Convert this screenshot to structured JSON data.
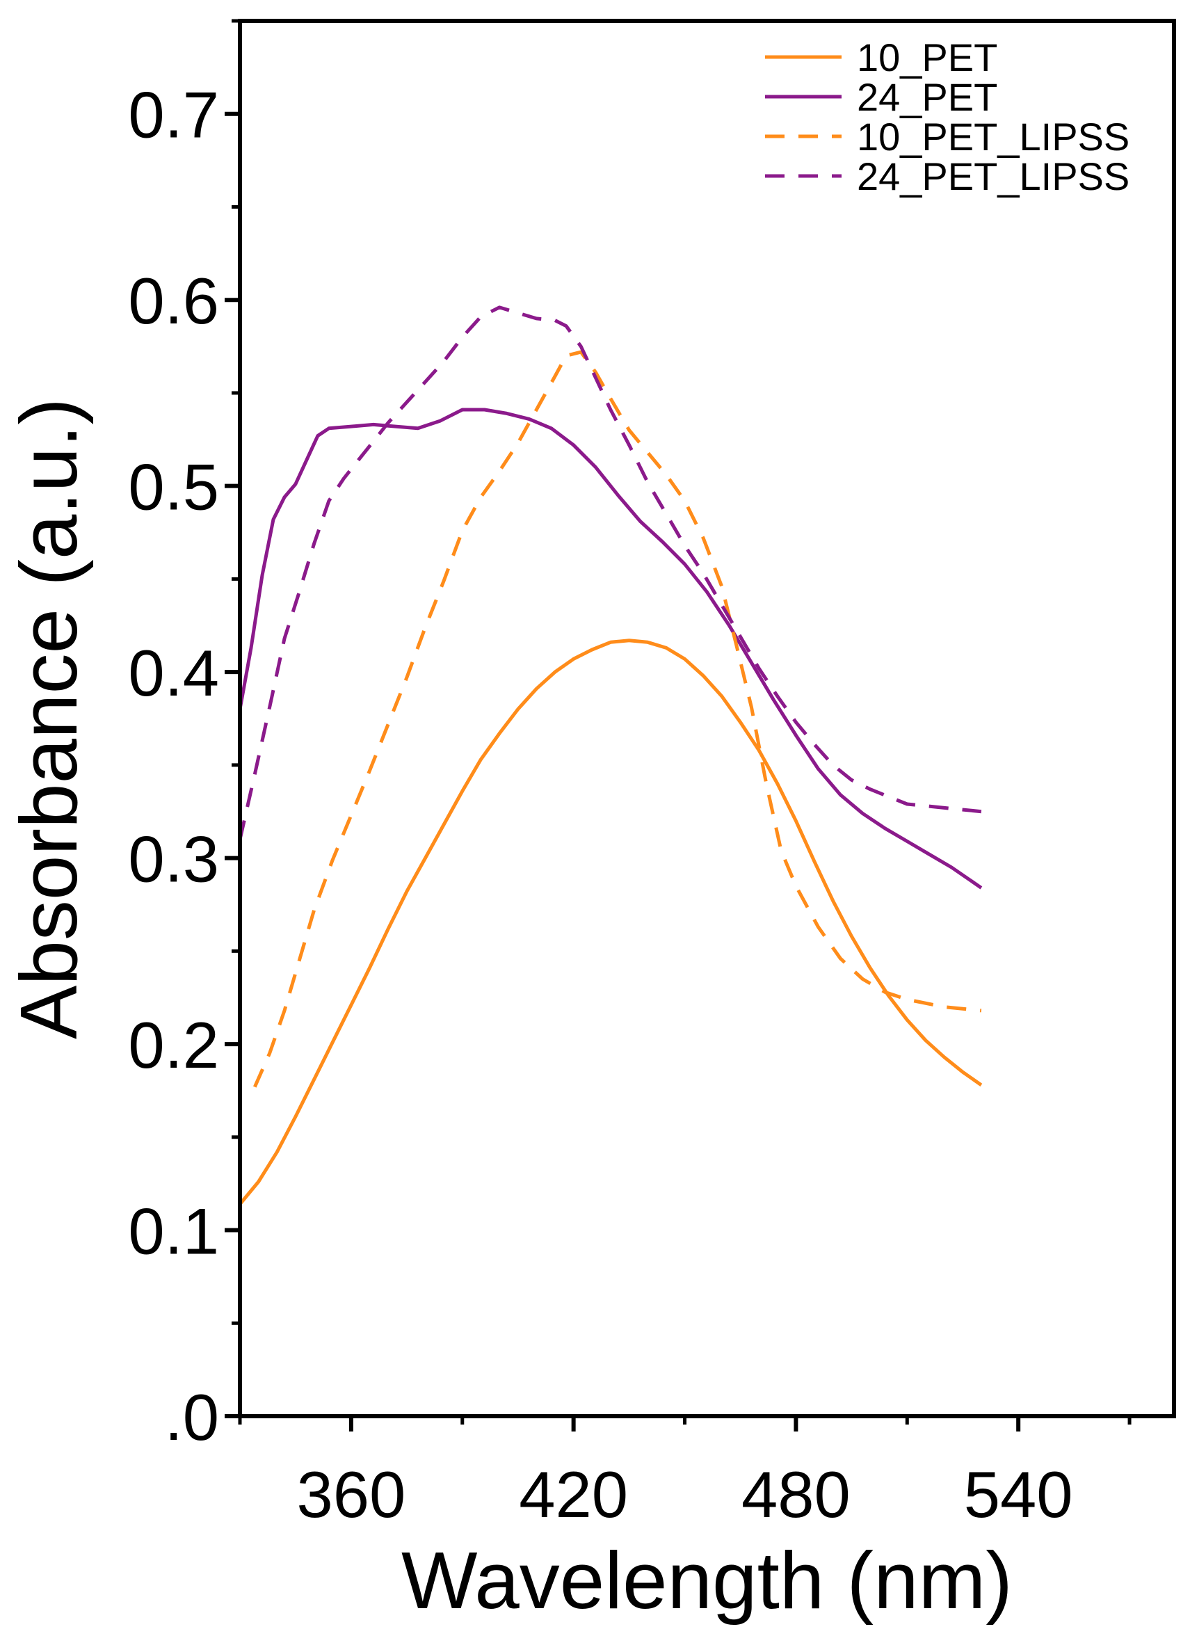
{
  "chart_data": {
    "type": "line",
    "title": "",
    "xlabel": "Wavelength (nm)",
    "ylabel": "Absorbance (a.u.)",
    "xlim": [
      330,
      582
    ],
    "ylim": [
      0.0,
      0.75
    ],
    "x_ticks": [
      360,
      420,
      480,
      540
    ],
    "x_tick_labels": [
      "360",
      "420",
      "480",
      "540"
    ],
    "x_minor_ticks": [
      330,
      390,
      450,
      510,
      570
    ],
    "y_ticks": [
      0.0,
      0.1,
      0.2,
      0.3,
      0.4,
      0.5,
      0.6,
      0.7
    ],
    "y_tick_labels": [
      ".0",
      "0.1",
      "0.2",
      "0.3",
      "0.4",
      "0.5",
      "0.6",
      "0.7"
    ],
    "y_minor_ticks": [
      0.05,
      0.15,
      0.25,
      0.35,
      0.45,
      0.55,
      0.65,
      0.75
    ],
    "grid": false,
    "legend_position": "top-right",
    "series": [
      {
        "name": "10_PET",
        "color": "#ff8c1a",
        "dash": "solid",
        "points": [
          [
            330,
            0.114
          ],
          [
            335,
            0.126
          ],
          [
            340,
            0.142
          ],
          [
            345,
            0.161
          ],
          [
            350,
            0.181
          ],
          [
            355,
            0.201
          ],
          [
            360,
            0.221
          ],
          [
            365,
            0.241
          ],
          [
            370,
            0.262
          ],
          [
            375,
            0.282
          ],
          [
            380,
            0.3
          ],
          [
            385,
            0.318
          ],
          [
            390,
            0.336
          ],
          [
            395,
            0.353
          ],
          [
            400,
            0.367
          ],
          [
            405,
            0.38
          ],
          [
            410,
            0.391
          ],
          [
            415,
            0.4
          ],
          [
            420,
            0.407
          ],
          [
            425,
            0.412
          ],
          [
            430,
            0.416
          ],
          [
            435,
            0.417
          ],
          [
            440,
            0.416
          ],
          [
            445,
            0.413
          ],
          [
            450,
            0.407
          ],
          [
            455,
            0.398
          ],
          [
            460,
            0.387
          ],
          [
            465,
            0.373
          ],
          [
            470,
            0.358
          ],
          [
            475,
            0.34
          ],
          [
            480,
            0.32
          ],
          [
            485,
            0.298
          ],
          [
            490,
            0.277
          ],
          [
            495,
            0.258
          ],
          [
            500,
            0.241
          ],
          [
            505,
            0.226
          ],
          [
            510,
            0.213
          ],
          [
            515,
            0.202
          ],
          [
            520,
            0.193
          ],
          [
            525,
            0.185
          ],
          [
            530,
            0.178
          ]
        ]
      },
      {
        "name": "24_PET",
        "color": "#8b1a8b",
        "dash": "solid",
        "points": [
          [
            330,
            0.38
          ],
          [
            333,
            0.413
          ],
          [
            336,
            0.452
          ],
          [
            339,
            0.482
          ],
          [
            342,
            0.494
          ],
          [
            345,
            0.501
          ],
          [
            348,
            0.514
          ],
          [
            351,
            0.527
          ],
          [
            354,
            0.531
          ],
          [
            360,
            0.532
          ],
          [
            366,
            0.533
          ],
          [
            372,
            0.532
          ],
          [
            378,
            0.531
          ],
          [
            384,
            0.535
          ],
          [
            390,
            0.541
          ],
          [
            396,
            0.541
          ],
          [
            402,
            0.539
          ],
          [
            408,
            0.536
          ],
          [
            414,
            0.531
          ],
          [
            420,
            0.522
          ],
          [
            426,
            0.51
          ],
          [
            432,
            0.495
          ],
          [
            438,
            0.481
          ],
          [
            444,
            0.47
          ],
          [
            450,
            0.458
          ],
          [
            456,
            0.443
          ],
          [
            462,
            0.425
          ],
          [
            468,
            0.405
          ],
          [
            474,
            0.385
          ],
          [
            480,
            0.366
          ],
          [
            486,
            0.348
          ],
          [
            492,
            0.334
          ],
          [
            498,
            0.324
          ],
          [
            504,
            0.316
          ],
          [
            510,
            0.309
          ],
          [
            516,
            0.302
          ],
          [
            522,
            0.295
          ],
          [
            530,
            0.284
          ]
        ]
      },
      {
        "name": "10_PET_LIPSS",
        "color": "#ff8c1a",
        "dash": "dashed",
        "points": [
          [
            334,
            0.177
          ],
          [
            338,
            0.195
          ],
          [
            342,
            0.218
          ],
          [
            346,
            0.245
          ],
          [
            350,
            0.272
          ],
          [
            355,
            0.299
          ],
          [
            360,
            0.323
          ],
          [
            365,
            0.347
          ],
          [
            370,
            0.372
          ],
          [
            375,
            0.397
          ],
          [
            380,
            0.424
          ],
          [
            385,
            0.449
          ],
          [
            390,
            0.476
          ],
          [
            395,
            0.494
          ],
          [
            400,
            0.508
          ],
          [
            405,
            0.523
          ],
          [
            410,
            0.541
          ],
          [
            415,
            0.559
          ],
          [
            418,
            0.57
          ],
          [
            422,
            0.572
          ],
          [
            426,
            0.561
          ],
          [
            430,
            0.547
          ],
          [
            435,
            0.53
          ],
          [
            440,
            0.518
          ],
          [
            445,
            0.506
          ],
          [
            450,
            0.492
          ],
          [
            455,
            0.472
          ],
          [
            460,
            0.446
          ],
          [
            464,
            0.414
          ],
          [
            468,
            0.381
          ],
          [
            472,
            0.34
          ],
          [
            476,
            0.304
          ],
          [
            480,
            0.285
          ],
          [
            486,
            0.263
          ],
          [
            492,
            0.246
          ],
          [
            498,
            0.235
          ],
          [
            504,
            0.228
          ],
          [
            510,
            0.224
          ],
          [
            520,
            0.22
          ],
          [
            530,
            0.218
          ]
        ]
      },
      {
        "name": "24_PET_LIPSS",
        "color": "#8b1a8b",
        "dash": "dashed",
        "points": [
          [
            330,
            0.31
          ],
          [
            334,
            0.345
          ],
          [
            338,
            0.381
          ],
          [
            342,
            0.418
          ],
          [
            346,
            0.443
          ],
          [
            350,
            0.469
          ],
          [
            354,
            0.492
          ],
          [
            358,
            0.504
          ],
          [
            362,
            0.514
          ],
          [
            366,
            0.524
          ],
          [
            370,
            0.534
          ],
          [
            375,
            0.545
          ],
          [
            380,
            0.556
          ],
          [
            385,
            0.567
          ],
          [
            390,
            0.58
          ],
          [
            395,
            0.591
          ],
          [
            400,
            0.596
          ],
          [
            405,
            0.593
          ],
          [
            410,
            0.59
          ],
          [
            415,
            0.589
          ],
          [
            418,
            0.586
          ],
          [
            422,
            0.575
          ],
          [
            426,
            0.558
          ],
          [
            430,
            0.541
          ],
          [
            435,
            0.522
          ],
          [
            440,
            0.502
          ],
          [
            445,
            0.485
          ],
          [
            450,
            0.468
          ],
          [
            455,
            0.453
          ],
          [
            460,
            0.436
          ],
          [
            465,
            0.419
          ],
          [
            470,
            0.402
          ],
          [
            475,
            0.387
          ],
          [
            480,
            0.373
          ],
          [
            485,
            0.361
          ],
          [
            490,
            0.35
          ],
          [
            495,
            0.342
          ],
          [
            500,
            0.337
          ],
          [
            505,
            0.333
          ],
          [
            510,
            0.329
          ],
          [
            530,
            0.325
          ]
        ]
      }
    ]
  }
}
